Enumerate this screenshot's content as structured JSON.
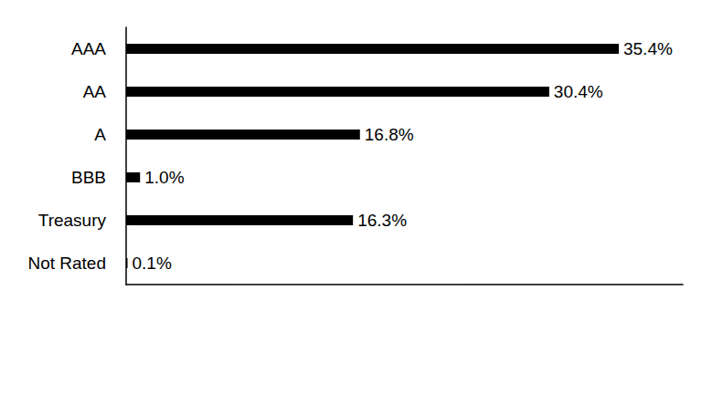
{
  "chart_data": {
    "type": "bar",
    "orientation": "horizontal",
    "categories": [
      "AAA",
      "AA",
      "A",
      "BBB",
      "Treasury",
      "Not Rated"
    ],
    "values": [
      35.4,
      30.4,
      16.8,
      1.0,
      16.3,
      0.1
    ],
    "value_labels": [
      "35.4%",
      "30.4%",
      "16.8%",
      "1.0%",
      "16.3%",
      "0.1%"
    ],
    "color": "#000000",
    "xlim": [
      0,
      40
    ],
    "grid": false,
    "data_labels": true,
    "tick_labels": "y"
  }
}
